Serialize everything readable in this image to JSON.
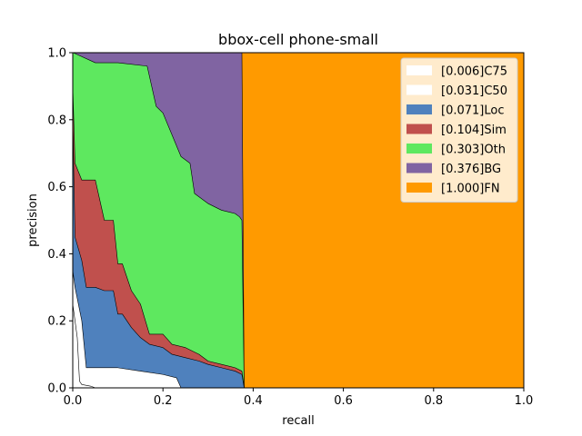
{
  "chart_data": {
    "type": "area",
    "title": "bbox-cell phone-small",
    "xlabel": "recall",
    "ylabel": "precision",
    "xlim": [
      0,
      1
    ],
    "ylim": [
      0,
      1
    ],
    "xticks": [
      "0.0",
      "0.2",
      "0.4",
      "0.6",
      "0.8",
      "1.0"
    ],
    "yticks": [
      "0.0",
      "0.2",
      "0.4",
      "0.6",
      "0.8",
      "1.0"
    ],
    "grid": false,
    "legend_position": "top-right",
    "series": [
      {
        "name": "[1.000]FN",
        "color": "#ff9a00",
        "x": [
          0,
          1
        ],
        "y": [
          1,
          1
        ]
      },
      {
        "name": "[0.376]BG",
        "color": "#8064a2",
        "x": [
          0,
          0.05,
          0.18,
          0.375,
          0.38
        ],
        "y": [
          1,
          1,
          1,
          1,
          0
        ]
      },
      {
        "name": "[0.303]Oth",
        "color": "#5ee85f",
        "x": [
          0,
          0.001,
          0.05,
          0.1,
          0.165,
          0.185,
          0.2,
          0.24,
          0.26,
          0.27,
          0.29,
          0.3,
          0.33,
          0.36,
          0.37,
          0.375,
          0.38
        ],
        "y": [
          1,
          1,
          0.97,
          0.97,
          0.96,
          0.84,
          0.82,
          0.69,
          0.67,
          0.58,
          0.56,
          0.55,
          0.53,
          0.52,
          0.51,
          0.5,
          0
        ]
      },
      {
        "name": "[0.104]Sim",
        "color": "#c0504d",
        "x": [
          0,
          0.005,
          0.02,
          0.05,
          0.07,
          0.09,
          0.1,
          0.11,
          0.13,
          0.15,
          0.17,
          0.2,
          0.22,
          0.25,
          0.28,
          0.3,
          0.33,
          0.36,
          0.375,
          0.38
        ],
        "y": [
          0.9,
          0.67,
          0.62,
          0.62,
          0.5,
          0.5,
          0.37,
          0.37,
          0.29,
          0.25,
          0.16,
          0.16,
          0.13,
          0.12,
          0.1,
          0.08,
          0.07,
          0.06,
          0.05,
          0
        ]
      },
      {
        "name": "[0.071]Loc",
        "color": "#4f81bd",
        "x": [
          0,
          0.005,
          0.02,
          0.03,
          0.05,
          0.07,
          0.09,
          0.1,
          0.11,
          0.13,
          0.15,
          0.17,
          0.2,
          0.22,
          0.25,
          0.28,
          0.3,
          0.33,
          0.36,
          0.375,
          0.38
        ],
        "y": [
          0.8,
          0.45,
          0.38,
          0.3,
          0.3,
          0.29,
          0.29,
          0.22,
          0.22,
          0.18,
          0.15,
          0.13,
          0.12,
          0.1,
          0.09,
          0.08,
          0.07,
          0.06,
          0.05,
          0.04,
          0
        ]
      },
      {
        "name": "[0.031]C50",
        "color": "#ffffff",
        "x": [
          0,
          0.005,
          0.02,
          0.03,
          0.05,
          0.1,
          0.15,
          0.2,
          0.23,
          0.24
        ],
        "y": [
          0.35,
          0.3,
          0.2,
          0.06,
          0.06,
          0.06,
          0.05,
          0.04,
          0.03,
          0
        ]
      },
      {
        "name": "[0.006]C75",
        "color": "#ffffff",
        "x": [
          0,
          0.005,
          0.01,
          0.015,
          0.02,
          0.04,
          0.05
        ],
        "y": [
          0.25,
          0.2,
          0.15,
          0.02,
          0.01,
          0.005,
          0
        ]
      }
    ],
    "legend_order": [
      "[0.006]C75",
      "[0.031]C50",
      "[0.071]Loc",
      "[0.104]Sim",
      "[0.303]Oth",
      "[0.376]BG",
      "[1.000]FN"
    ]
  }
}
